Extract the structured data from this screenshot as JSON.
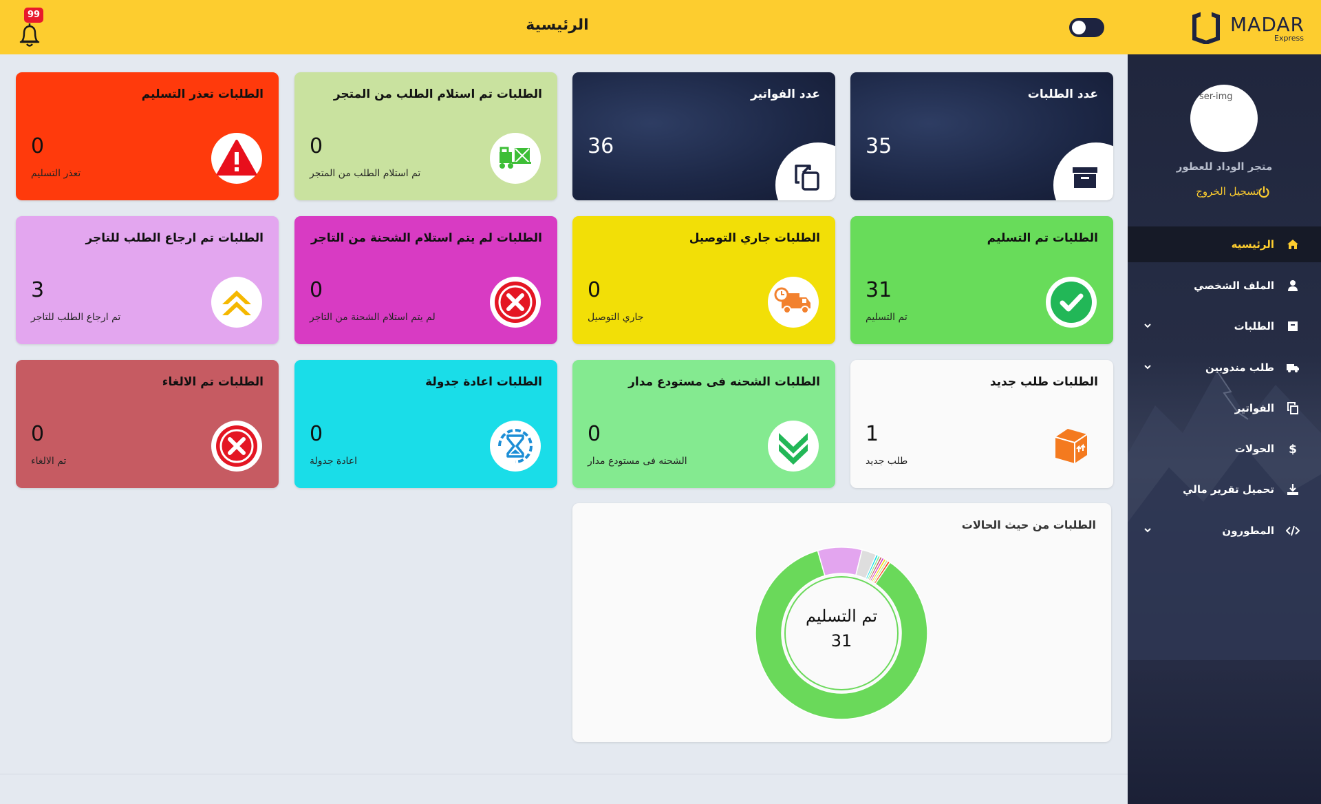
{
  "header": {
    "title": "الرئيسية",
    "logo_text": "MADAR",
    "logo_sub": "Express",
    "notification_count": "99",
    "toggle_state": "off"
  },
  "sidebar": {
    "avatar_alt": "ser-img",
    "store_name": "متجر الوداد للعطور",
    "logout_label": "تسجيل الخروج",
    "items": [
      {
        "label": "الرئيسيه",
        "icon": "home-icon",
        "active": true,
        "expandable": false
      },
      {
        "label": "الملف الشخصي",
        "icon": "user-icon",
        "active": false,
        "expandable": false
      },
      {
        "label": "الطلبات",
        "icon": "box-icon",
        "active": false,
        "expandable": true
      },
      {
        "label": "طلب مندوبين",
        "icon": "truck-icon",
        "active": false,
        "expandable": true
      },
      {
        "label": "الفواتير",
        "icon": "copy-icon",
        "active": false,
        "expandable": false
      },
      {
        "label": "الحولات",
        "icon": "dollar-icon",
        "active": false,
        "expandable": false
      },
      {
        "label": "تحميل تقرير مالي",
        "icon": "download-icon",
        "active": false,
        "expandable": false
      },
      {
        "label": "المطورون",
        "icon": "code-icon",
        "active": false,
        "expandable": true
      }
    ]
  },
  "cards": {
    "orders_count": {
      "title": "عدد الطلبات",
      "count": "35",
      "icon": "archive-icon"
    },
    "invoices_count": {
      "title": "عدد الفواتير",
      "count": "36",
      "icon": "copy-icon"
    },
    "received_from_store": {
      "title": "الطلبات تم استلام الطلب من المتجر",
      "count": "0",
      "sub": "تم استلام الطلب من المتجر",
      "icon": "forklift-icon"
    },
    "failed_delivery": {
      "title": "الطلبات تعذر التسليم",
      "count": "0",
      "sub": "تعذر التسليم",
      "icon": "alert-icon"
    },
    "delivered": {
      "title": "الطلبات تم التسليم",
      "count": "31",
      "sub": "تم التسليم",
      "icon": "check-icon"
    },
    "in_delivery": {
      "title": "الطلبات جاري التوصيل",
      "count": "0",
      "sub": "جاري التوصيل",
      "icon": "delivery-truck-icon"
    },
    "not_received_from_merchant": {
      "title": "الطلبات لم يتم استلام الشحنة من التاجر",
      "count": "0",
      "sub": "لم يتم استلام الشحنة من التاجر",
      "icon": "x-circle-icon"
    },
    "returned_to_merchant": {
      "title": "الطلبات تم ارجاع الطلب للتاجر",
      "count": "3",
      "sub": "تم ارجاع الطلب للتاجر",
      "icon": "chevrons-up-icon"
    },
    "new_order": {
      "title": "الطلبات طلب جديد",
      "count": "1",
      "sub": "طلب جديد",
      "icon": "package-icon"
    },
    "in_warehouse": {
      "title": "الطلبات الشحنه فى مستودع مدار",
      "count": "0",
      "sub": "الشحنه فى مستودع مدار",
      "icon": "chevrons-down-icon"
    },
    "rescheduled": {
      "title": "الطلبات اعادة جدولة",
      "count": "0",
      "sub": "اعادة جدولة",
      "icon": "hourglass-icon"
    },
    "cancelled": {
      "title": "الطلبات تم الالغاء",
      "count": "0",
      "sub": "تم الالغاء",
      "icon": "x-circle-icon"
    }
  },
  "chart_panel": {
    "title": "الطلبات من حيث الحالات",
    "center_label": "تم التسليم",
    "center_value": "31"
  },
  "chart_data": {
    "type": "pie",
    "variant": "doughnut",
    "slices": [
      {
        "label": "تم التسليم",
        "value": 31,
        "color": "#6ad95a"
      },
      {
        "label": "تم ارجاع الطلب للتاجر",
        "value": 3,
        "color": "#e3a5ef"
      },
      {
        "label": "طلب جديد",
        "value": 1,
        "color": "#dedede"
      },
      {
        "label": "اعادة جدولة",
        "value": 0.15,
        "color": "#1adce8"
      },
      {
        "label": "الشحنه فى مستودع مدار",
        "value": 0.15,
        "color": "#86e98f"
      },
      {
        "label": "تم الالغاء",
        "value": 0.15,
        "color": "#c65b62"
      },
      {
        "label": "لم يتم استلام الشحنة من التاجر",
        "value": 0.15,
        "color": "#d63ac4"
      },
      {
        "label": "جاري التوصيل",
        "value": 0.15,
        "color": "#f1de0a"
      },
      {
        "label": "تم استلام الطلب من المتجر",
        "value": 0.15,
        "color": "#c4e2a0"
      },
      {
        "label": "تعذر التسليم",
        "value": 0.15,
        "color": "#ff3b0d"
      }
    ]
  },
  "colors": {
    "header": "#fdcd2f",
    "sidebar": "#20263d",
    "accent": "#fdcd2f"
  }
}
